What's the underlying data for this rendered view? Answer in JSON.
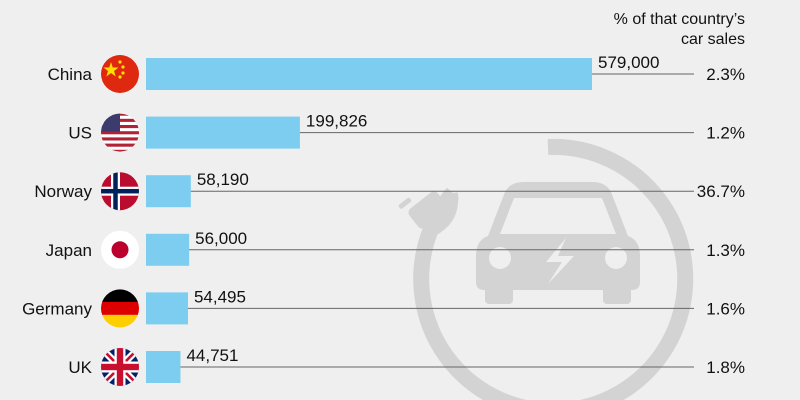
{
  "chart_data": {
    "type": "bar",
    "orientation": "horizontal",
    "header": [
      "% of that country’s",
      "car sales"
    ],
    "categories": [
      "China",
      "US",
      "Norway",
      "Japan",
      "Germany",
      "UK"
    ],
    "values": [
      579000,
      199826,
      58190,
      56000,
      54495,
      44751
    ],
    "value_labels": [
      "579,000",
      "199,826",
      "58,190",
      "56,000",
      "54,495",
      "44,751"
    ],
    "share_of_car_sales": [
      "2.3%",
      "1.2%",
      "36.7%",
      "1.3%",
      "1.6%",
      "1.8%"
    ],
    "flags": [
      "china-flag",
      "us-flag",
      "norway-flag",
      "japan-flag",
      "germany-flag",
      "uk-flag"
    ],
    "xlim": [
      0,
      579000
    ],
    "grid": false,
    "background_icon": "electric-car-plug-icon"
  },
  "colors": {
    "bar": "#7ccdf0",
    "background": "#efefef",
    "leader_line": "#666666",
    "watermark": "#d3d3d3"
  }
}
